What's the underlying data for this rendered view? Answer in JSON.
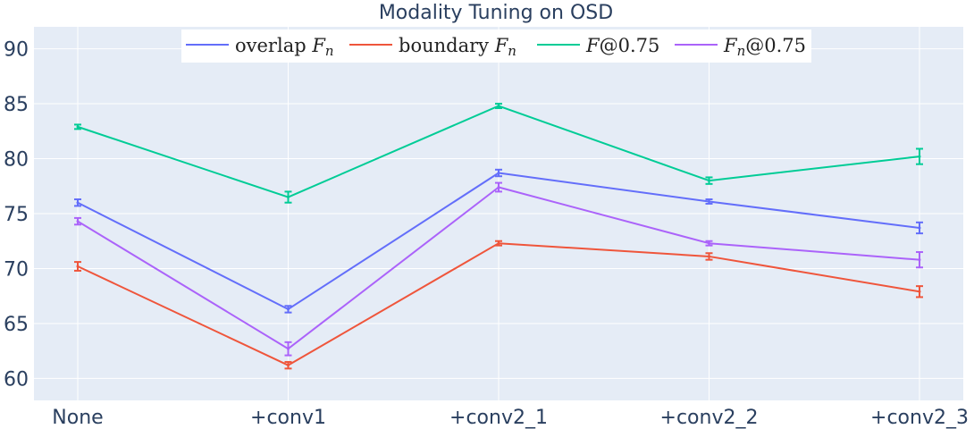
{
  "chart_data": {
    "type": "line",
    "title": "Modality Tuning on OSD",
    "categories": [
      "None",
      "+conv1",
      "+conv2_1",
      "+conv2_2",
      "+conv2_3"
    ],
    "xlabel": "",
    "ylabel": "",
    "ylim": [
      58,
      92
    ],
    "yticks": [
      60,
      65,
      70,
      75,
      80,
      85,
      90
    ],
    "grid": true,
    "legend_position": "top",
    "series": [
      {
        "name": "overlap",
        "math": "F",
        "sub": "n",
        "color": "#636efa",
        "values": [
          76.0,
          66.3,
          78.7,
          76.1,
          73.7
        ],
        "errors": [
          0.3,
          0.3,
          0.3,
          0.2,
          0.5
        ]
      },
      {
        "name": "boundary",
        "math": "F",
        "sub": "n",
        "color": "#ef553b",
        "values": [
          70.2,
          61.2,
          72.3,
          71.1,
          67.9
        ],
        "errors": [
          0.4,
          0.3,
          0.2,
          0.3,
          0.5
        ]
      },
      {
        "name": "",
        "math": "F",
        "sub": "",
        "suffix": "@0.75",
        "color": "#00cc96",
        "values": [
          82.9,
          76.5,
          84.8,
          78.0,
          80.2
        ],
        "errors": [
          0.2,
          0.5,
          0.2,
          0.3,
          0.7
        ]
      },
      {
        "name": "",
        "math": "F",
        "sub": "n",
        "suffix": "@0.75",
        "color": "#ab63fa",
        "values": [
          74.3,
          62.7,
          77.4,
          72.3,
          70.8
        ],
        "errors": [
          0.3,
          0.6,
          0.4,
          0.2,
          0.7
        ]
      }
    ]
  }
}
